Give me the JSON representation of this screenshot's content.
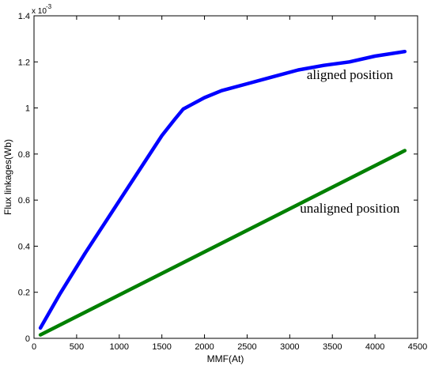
{
  "chart_data": {
    "type": "line",
    "title": "",
    "xlabel": "MMF(At)",
    "ylabel": "Flux linkages(Wb)",
    "xlim": [
      0,
      4500
    ],
    "ylim": [
      0,
      1.4
    ],
    "y_exponent": "x 10",
    "y_exponent_power": "-3",
    "x_ticks": [
      "0",
      "500",
      "1000",
      "1500",
      "2000",
      "2500",
      "3000",
      "3500",
      "4000",
      "4500"
    ],
    "y_ticks": [
      "0",
      "0.2",
      "0.4",
      "0.6",
      "0.8",
      "1",
      "1.2",
      "1.4"
    ],
    "grid": false,
    "series": [
      {
        "color": "#0000ff",
        "x": [
          75,
          300,
          600,
          900,
          1200,
          1500,
          1650,
          1750,
          1850,
          2000,
          2200,
          2500,
          2800,
          3100,
          3400,
          3700,
          4000,
          4350
        ],
        "y": [
          0.045,
          0.19,
          0.37,
          0.54,
          0.71,
          0.88,
          0.95,
          0.995,
          1.015,
          1.045,
          1.075,
          1.105,
          1.135,
          1.165,
          1.185,
          1.2,
          1.225,
          1.245
        ]
      },
      {
        "color": "#008000",
        "x": [
          75,
          4350
        ],
        "y": [
          0.015,
          0.815
        ]
      }
    ],
    "annotations": [
      {
        "text": "aligned position",
        "x": 3200,
        "y": 1.125
      },
      {
        "text": "unaligned position",
        "x": 3120,
        "y": 0.545
      }
    ]
  }
}
